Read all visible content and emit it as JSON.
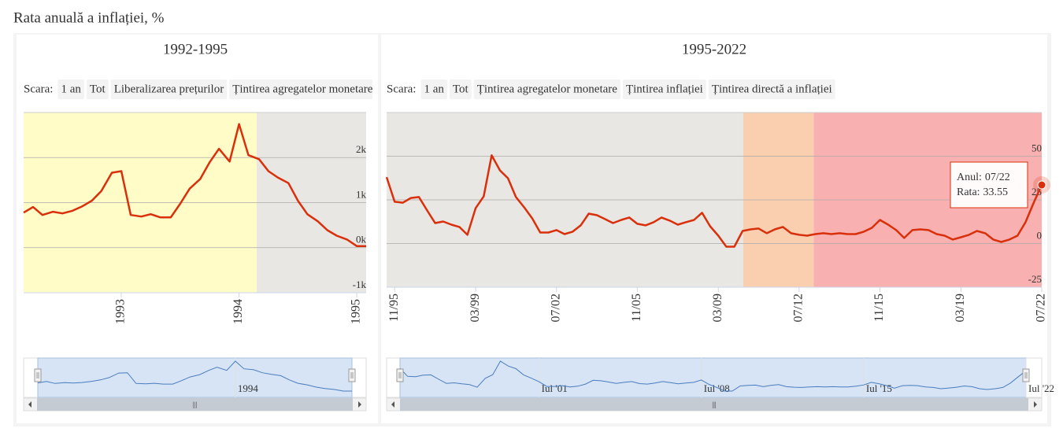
{
  "page_title": "Rata anuală a inflației, %",
  "chart_data": [
    {
      "type": "line",
      "title": "1992-1995",
      "range_selector": {
        "label": "Scara:",
        "buttons": [
          "1 an",
          "Tot",
          "Liberalizarea prețurilor",
          "Țintirea agregatelor monetare"
        ],
        "disabled": [
          "Tot"
        ]
      },
      "x": [
        1992.17,
        1992.25,
        1992.33,
        1992.42,
        1992.5,
        1992.58,
        1992.67,
        1992.75,
        1992.83,
        1992.92,
        1993.0,
        1993.08,
        1993.17,
        1993.25,
        1993.33,
        1993.42,
        1993.5,
        1993.58,
        1993.67,
        1993.75,
        1993.83,
        1993.92,
        1994.0,
        1994.08,
        1994.17,
        1994.25,
        1994.33,
        1994.42,
        1994.5,
        1994.58,
        1994.67,
        1994.75,
        1994.83,
        1994.92,
        1995.0,
        1995.08
      ],
      "series": [
        {
          "color": "#d9300b",
          "values": [
            779,
            903,
            726,
            797,
            761,
            814,
            920,
            1044,
            1257,
            1664,
            1699,
            726,
            690,
            743,
            673,
            673,
            974,
            1310,
            1522,
            1894,
            2195,
            1912,
            2744,
            2053,
            1965,
            1699,
            1558,
            1434,
            1044,
            743,
            584,
            389,
            266,
            177,
            35,
            35
          ]
        }
      ],
      "xlim": [
        1992.17,
        1995.08
      ],
      "xticks": [
        1993,
        1994,
        1995
      ],
      "ylim": [
        -1000,
        3000
      ],
      "yticks": [
        {
          "value": -1000,
          "label": "-1k"
        },
        {
          "value": 0,
          "label": "0k"
        },
        {
          "value": 1000,
          "label": "1k"
        },
        {
          "value": 2000,
          "label": "2k"
        }
      ],
      "grid": true,
      "bands": [
        {
          "from": 1992.17,
          "to": 1994.15,
          "color": "#fffcc8"
        },
        {
          "from": 1994.15,
          "to": 1995.08,
          "color": "#e9e7e3"
        }
      ],
      "navigator_ticks": [
        {
          "value": 1994,
          "label": "1994"
        }
      ]
    },
    {
      "type": "line",
      "title": "1995-2022",
      "range_selector": {
        "label": "Scara:",
        "buttons": [
          "1 an",
          "Tot",
          "Țintirea agregatelor monetare",
          "Țintirea inflației",
          "Țintirea directă a inflației"
        ],
        "disabled": [
          "Tot"
        ]
      },
      "x": [
        1995.5,
        1995.83,
        1996.17,
        1996.5,
        1996.83,
        1997.17,
        1997.5,
        1997.83,
        1998.17,
        1998.5,
        1998.83,
        1999.17,
        1999.5,
        1999.83,
        2000.17,
        2000.5,
        2000.83,
        2001.17,
        2001.5,
        2001.83,
        2002.17,
        2002.5,
        2002.83,
        2003.17,
        2003.5,
        2003.83,
        2004.17,
        2004.5,
        2004.83,
        2005.17,
        2005.5,
        2005.83,
        2006.17,
        2006.5,
        2006.83,
        2007.17,
        2007.5,
        2007.83,
        2008.17,
        2008.5,
        2008.83,
        2009.17,
        2009.5,
        2009.83,
        2010.17,
        2010.5,
        2010.83,
        2011.17,
        2011.5,
        2011.83,
        2012.17,
        2012.5,
        2012.83,
        2013.17,
        2013.5,
        2013.83,
        2014.17,
        2014.5,
        2014.83,
        2015.17,
        2015.5,
        2015.83,
        2016.17,
        2016.5,
        2016.83,
        2017.17,
        2017.5,
        2017.83,
        2018.17,
        2018.5,
        2018.83,
        2019.17,
        2019.5,
        2019.83,
        2020.17,
        2020.5,
        2020.83,
        2021.17,
        2021.5,
        2021.83,
        2022.17,
        2022.5
      ],
      "series": [
        {
          "color": "#d9300b",
          "values": [
            38,
            23.9,
            23.4,
            26.1,
            26.6,
            18.9,
            11.7,
            12.6,
            10.8,
            9.5,
            5.0,
            20.3,
            27.0,
            50.5,
            41.9,
            37.4,
            26.6,
            20.7,
            14.4,
            6.3,
            6.3,
            7.7,
            5.4,
            6.8,
            10.4,
            17.1,
            16.2,
            14.0,
            11.7,
            13.5,
            14.9,
            11.3,
            10.4,
            12.2,
            14.9,
            13.1,
            10.8,
            12.2,
            13.5,
            17.6,
            9.9,
            4.5,
            -1.8,
            -1.8,
            7.2,
            8.1,
            8.6,
            5.9,
            8.1,
            9.5,
            5.9,
            5.0,
            4.5,
            5.4,
            5.9,
            5.4,
            5.9,
            5.4,
            5.4,
            6.8,
            9.0,
            13.5,
            10.8,
            7.7,
            3.2,
            7.7,
            8.1,
            7.7,
            5.4,
            4.5,
            2.3,
            3.6,
            5.0,
            7.2,
            5.9,
            2.3,
            0.9,
            2.3,
            4.5,
            12.2,
            23.4,
            33.55
          ]
        }
      ],
      "xlim": [
        1995.5,
        2022.5
      ],
      "xticks": [
        {
          "value": 1995.83,
          "label": "11/95"
        },
        {
          "value": 1999.17,
          "label": "03/99"
        },
        {
          "value": 2002.5,
          "label": "07/02"
        },
        {
          "value": 2005.83,
          "label": "11/05"
        },
        {
          "value": 2009.17,
          "label": "03/09"
        },
        {
          "value": 2012.5,
          "label": "07/12"
        },
        {
          "value": 2015.83,
          "label": "11/15"
        },
        {
          "value": 2019.17,
          "label": "03/19"
        },
        {
          "value": 2022.5,
          "label": "07/22"
        }
      ],
      "ylim": [
        -25,
        75
      ],
      "yticks": [
        -25,
        0,
        25,
        50
      ],
      "grid": true,
      "bands": [
        {
          "from": 1995.5,
          "to": 2010.2,
          "color": "#e9e7e3"
        },
        {
          "from": 2010.2,
          "to": 2013.1,
          "color": "#f9cfb0"
        },
        {
          "from": 2013.1,
          "to": 2022.5,
          "color": "#f9b0b0"
        }
      ],
      "navigator_ticks": [
        {
          "value": 2001.5,
          "label": "Iul '01"
        },
        {
          "value": 2008.5,
          "label": "Iul '08"
        },
        {
          "value": 2015.5,
          "label": "Iul '15"
        },
        {
          "value": 2022.5,
          "label": "Iul '22"
        }
      ],
      "tooltip": {
        "x_label": "Anul:",
        "x": "07/22",
        "y_label": "Rata:"
      }
    }
  ]
}
